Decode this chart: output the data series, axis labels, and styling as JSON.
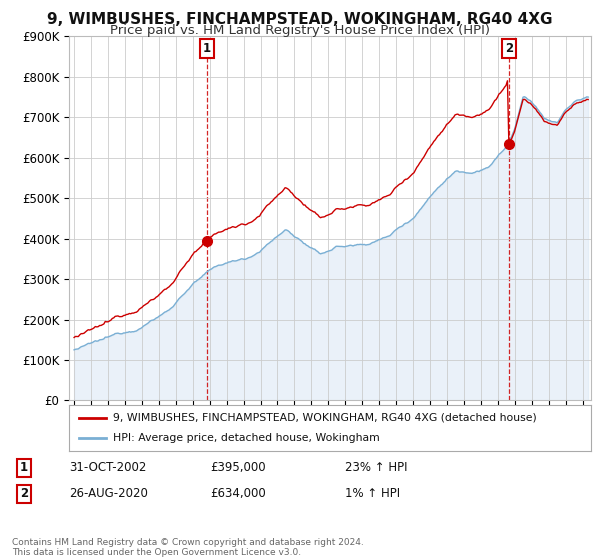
{
  "title": "9, WIMBUSHES, FINCHAMPSTEAD, WOKINGHAM, RG40 4XG",
  "subtitle": "Price paid vs. HM Land Registry's House Price Index (HPI)",
  "ylim": [
    0,
    900000
  ],
  "yticks": [
    0,
    100000,
    200000,
    300000,
    400000,
    500000,
    600000,
    700000,
    800000,
    900000
  ],
  "ytick_labels": [
    "£0",
    "£100K",
    "£200K",
    "£300K",
    "£400K",
    "£500K",
    "£600K",
    "£700K",
    "£800K",
    "£900K"
  ],
  "xlim_start": 1994.7,
  "xlim_end": 2025.5,
  "sale1_x": 2002.83,
  "sale1_y": 395000,
  "sale2_x": 2020.65,
  "sale2_y": 634000,
  "legend_label1": "9, WIMBUSHES, FINCHAMPSTEAD, WOKINGHAM, RG40 4XG (detached house)",
  "legend_label2": "HPI: Average price, detached house, Wokingham",
  "footer": "Contains HM Land Registry data © Crown copyright and database right 2024.\nThis data is licensed under the Open Government Licence v3.0.",
  "sale1_date": "31-OCT-2002",
  "sale1_price": "£395,000",
  "sale1_hpi": "23% ↑ HPI",
  "sale2_date": "26-AUG-2020",
  "sale2_price": "£634,000",
  "sale2_hpi": "1% ↑ HPI",
  "line_color_red": "#cc0000",
  "line_color_blue": "#7aafd4",
  "fill_color_blue": "#dce9f5",
  "background_color": "#ffffff",
  "grid_color": "#cccccc",
  "title_fontsize": 11,
  "subtitle_fontsize": 9.5
}
